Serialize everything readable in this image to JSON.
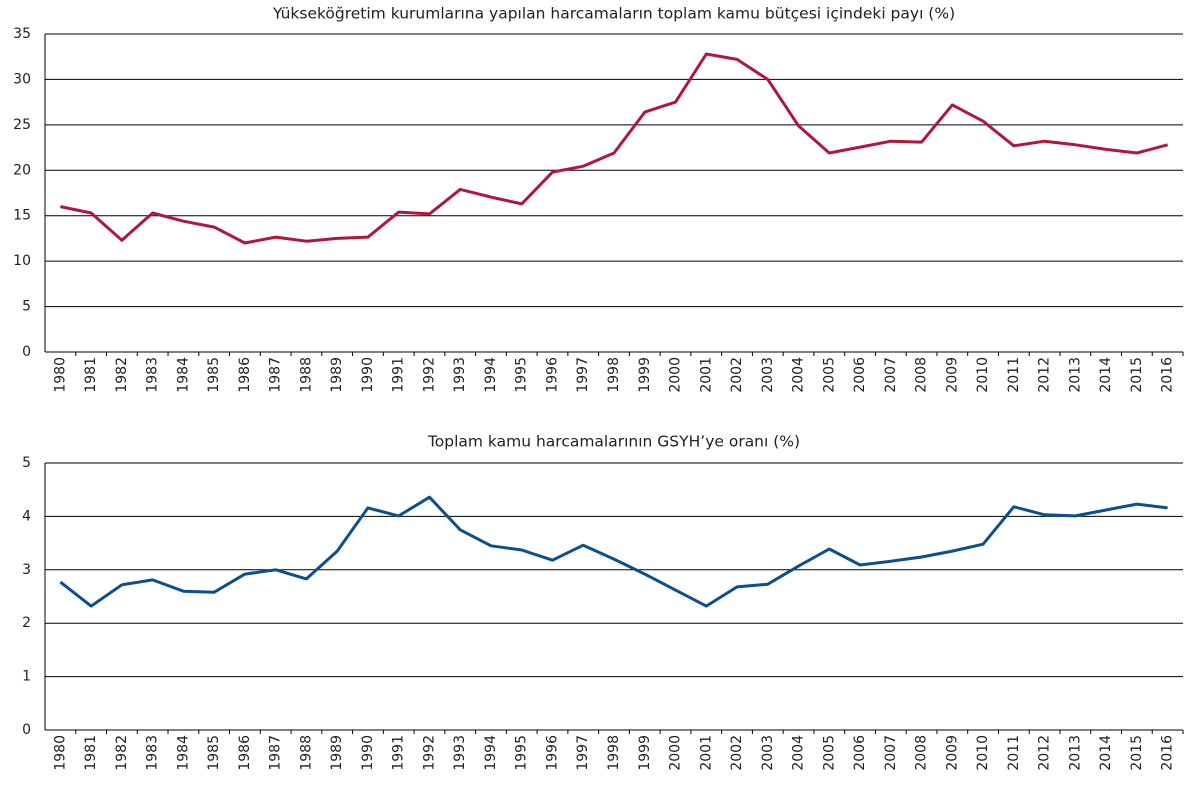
{
  "chart_data": [
    {
      "type": "line",
      "title": "Yükseköğretim kurumlarına yapılan harcamaların toplam kamu bütçesi içindeki payı (%)",
      "categories": [
        "1980",
        "1981",
        "1982",
        "1983",
        "1984",
        "1985",
        "1986",
        "1987",
        "1988",
        "1989",
        "1990",
        "1991",
        "1992",
        "1993",
        "1994",
        "1995",
        "1996",
        "1997",
        "1998",
        "1999",
        "2000",
        "2001",
        "2002",
        "2003",
        "2004",
        "2005",
        "2006",
        "2007",
        "2008",
        "2009",
        "2010",
        "2011",
        "2012",
        "2013",
        "2014",
        "2015",
        "2016"
      ],
      "values": [
        16,
        15.3,
        12.3,
        15.3,
        14.4,
        13.75,
        12.0,
        12.65,
        12.2,
        12.5,
        12.65,
        15.4,
        15.2,
        17.9,
        17.05,
        16.3,
        19.8,
        20.45,
        21.9,
        26.4,
        27.5,
        32.8,
        32.2,
        30.0,
        24.9,
        21.9,
        22.55,
        23.2,
        23.1,
        27.2,
        25.4,
        22.7,
        23.2,
        22.8,
        22.3,
        21.9,
        22.8
      ],
      "color": "#b0173f",
      "ylim": [
        0,
        35
      ],
      "yticks": [
        0,
        5,
        10,
        15,
        20,
        25,
        30,
        35
      ],
      "grid": true
    },
    {
      "type": "line",
      "title": "Toplam kamu harcamalarının GSYH’ye oranı (%)",
      "categories": [
        "1980",
        "1981",
        "1982",
        "1983",
        "1984",
        "1985",
        "1986",
        "1987",
        "1988",
        "1989",
        "1990",
        "1991",
        "1992",
        "1993",
        "1994",
        "1995",
        "1996",
        "1997",
        "1998",
        "1999",
        "2000",
        "2001",
        "2002",
        "2003",
        "2004",
        "2005",
        "2006",
        "2007",
        "2008",
        "2009",
        "2010",
        "2011",
        "2012",
        "2013",
        "2014",
        "2015",
        "2016"
      ],
      "values": [
        2.77,
        2.32,
        2.72,
        2.81,
        2.6,
        2.58,
        2.92,
        3.0,
        2.83,
        3.35,
        4.16,
        4.01,
        4.36,
        3.75,
        3.45,
        3.37,
        3.18,
        3.46,
        3.2,
        2.92,
        2.62,
        2.32,
        2.68,
        2.73,
        3.07,
        3.39,
        3.09,
        3.16,
        3.24,
        3.35,
        3.48,
        4.18,
        4.03,
        4.01,
        4.12,
        4.23,
        4.16
      ],
      "color": "#0b4f8d",
      "ylim": [
        0,
        5
      ],
      "yticks": [
        0,
        1,
        2,
        3,
        4,
        5
      ],
      "grid": true
    }
  ]
}
